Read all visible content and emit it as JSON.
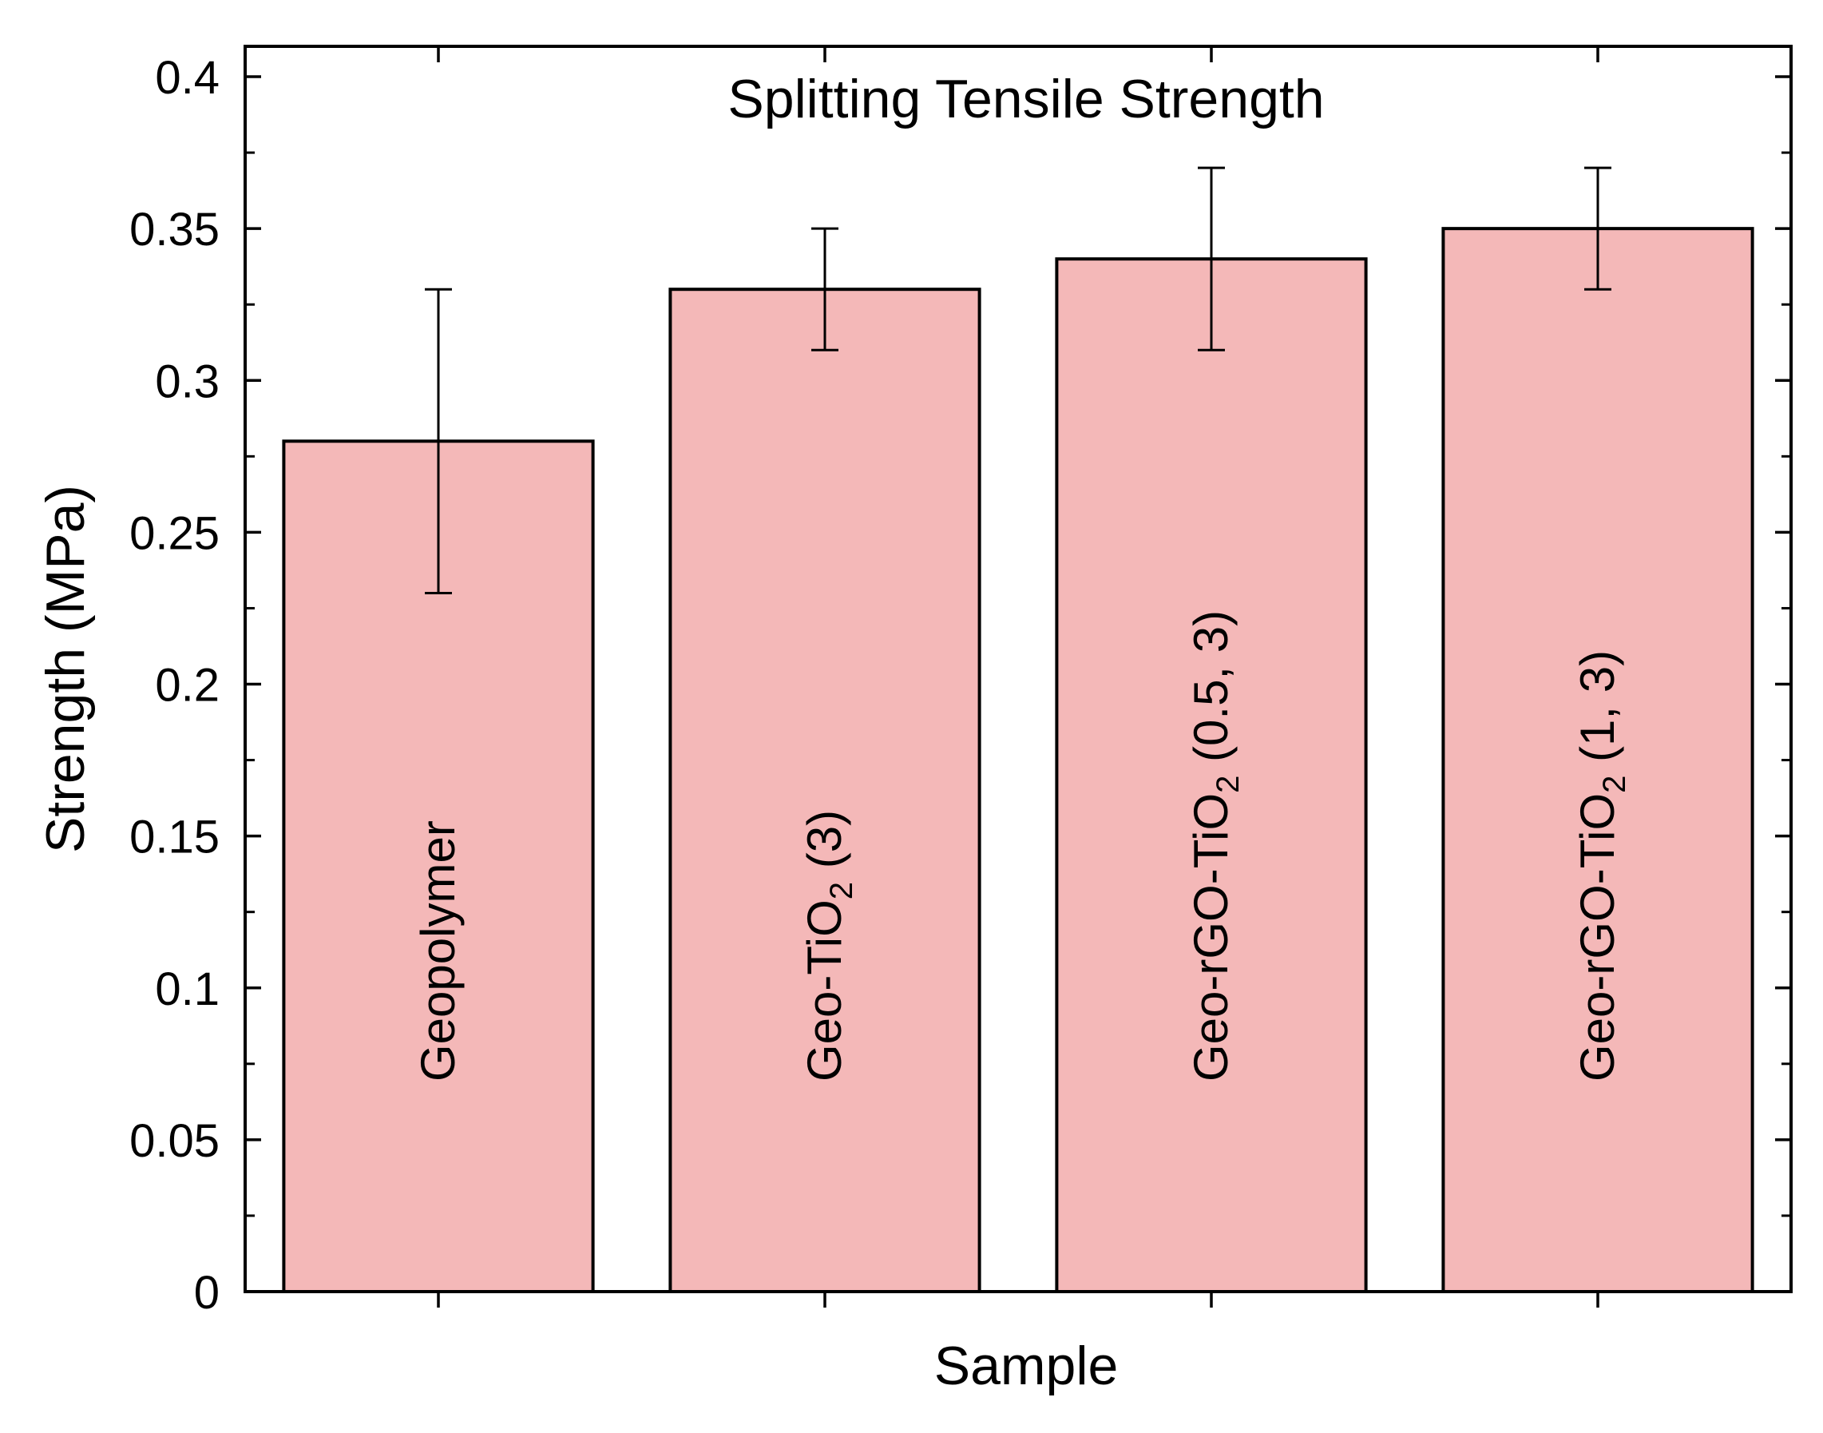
{
  "chart_data": {
    "type": "bar",
    "title": "Splitting Tensile Strength",
    "xlabel": "Sample",
    "ylabel": "Strength (MPa)",
    "ylim": [
      0,
      0.41
    ],
    "yticks": [
      0,
      0.05,
      0.1,
      0.15,
      0.2,
      0.25,
      0.3,
      0.35,
      0.4
    ],
    "ytick_labels": [
      "0",
      "0.05",
      "0.1",
      "0.15",
      "0.2",
      "0.25",
      "0.3",
      "0.35",
      "0.4"
    ],
    "categories": [
      "Geopolymer",
      "Geo-TiO2 (3)",
      "Geo-rGO-TiO2 (0.5, 3)",
      "Geo-rGO-TiO2 (1, 3)"
    ],
    "category_labels": [
      {
        "pre": "Geopolymer",
        "sub": "",
        "post": ""
      },
      {
        "pre": "Geo-TiO",
        "sub": "2",
        "post": " (3)"
      },
      {
        "pre": "Geo-rGO-TiO",
        "sub": "2",
        "post": " (0.5, 3)"
      },
      {
        "pre": "Geo-rGO-TiO",
        "sub": "2",
        "post": " (1, 3)"
      }
    ],
    "values": [
      0.28,
      0.33,
      0.34,
      0.35
    ],
    "errors": [
      0.05,
      0.02,
      0.03,
      0.02
    ],
    "bar_color": "#f4b8b8",
    "grid": false
  }
}
